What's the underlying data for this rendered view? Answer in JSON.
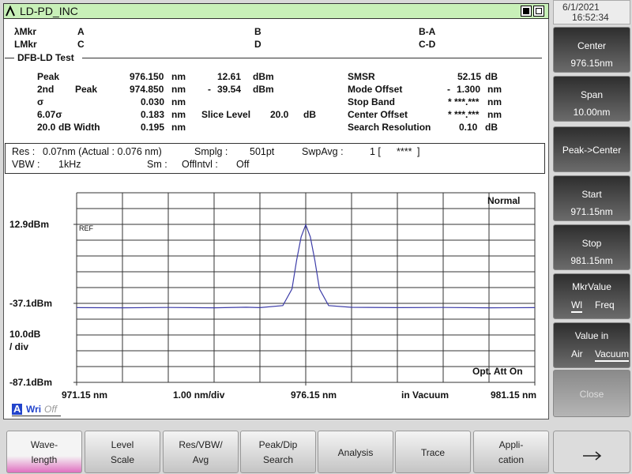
{
  "window": {
    "title": "LD-PD_INC"
  },
  "datetime": {
    "date": "6/1/2021",
    "time": "16:52:34"
  },
  "markers": {
    "rows": [
      [
        "λMkr",
        "A",
        "B",
        "B-A"
      ],
      [
        "LMkr",
        "C",
        "D",
        "C-D"
      ]
    ]
  },
  "test": {
    "title": "DFB-LD Test",
    "rows": [
      [
        "Peak",
        "976.150",
        "nm",
        "12.61",
        "dBm",
        "SMSR",
        "52.15",
        "dB"
      ],
      [
        "2nd",
        "Peak",
        "974.850",
        "nm",
        "-",
        "39.54",
        "dBm",
        "Mode Offset",
        "-",
        "1.300",
        "nm"
      ],
      [
        "σ",
        "0.030",
        "nm",
        "Stop Band",
        "* ***.***",
        "nm"
      ],
      [
        "6.07σ",
        "0.183",
        "nm",
        "Slice Level",
        "20.0",
        "dB",
        "Center Offset",
        "* ***.***",
        "nm"
      ],
      [
        "20.0",
        "dB Width",
        "0.195",
        "nm",
        "Search Resolution",
        "0.10",
        "dB"
      ]
    ]
  },
  "settings": {
    "rows": [
      [
        "Res :",
        "0.07nm (Actual : 0.076 nm)",
        "Smplg :",
        "501pt",
        "SwpAvg :",
        "1 [",
        "****",
        "]"
      ],
      [
        "VBW :",
        "1kHz",
        "Sm :",
        "Off",
        "Intvl :",
        "Off"
      ]
    ]
  },
  "graph_labels": {
    "mode": "Normal",
    "ref": "REF",
    "scale": "10.0dB",
    "scale_unit": "/ div",
    "att": "Opt. Att On",
    "span_div": "1.00 nm/div",
    "medium": "in Vacuum"
  },
  "trace_status": {
    "trace": "A",
    "mode": "Wri",
    "state": "Off"
  },
  "chart_data": {
    "type": "line",
    "xlim": [
      971.15,
      981.15
    ],
    "ylim": [
      -87.1,
      32.9
    ],
    "xticks": [
      {
        "value": 971.15,
        "label": "971.15 nm"
      },
      {
        "value": 976.15,
        "label": "976.15 nm"
      },
      {
        "value": 981.15,
        "label": "981.15 nm"
      }
    ],
    "yticks": [
      {
        "value": 12.9,
        "label": "12.9dBm"
      },
      {
        "value": -37.1,
        "label": "-37.1dBm"
      },
      {
        "value": -87.1,
        "label": "-87.1dBm"
      }
    ],
    "x": [
      971.15,
      972.15,
      973.15,
      974.15,
      974.85,
      975.15,
      975.65,
      975.85,
      975.95,
      976.05,
      976.15,
      976.25,
      976.35,
      976.45,
      976.65,
      977.15,
      978.15,
      979.15,
      980.15,
      981.15
    ],
    "series": [
      {
        "color": "#3c3ca8",
        "values": [
          -39.8,
          -39.9,
          -39.7,
          -39.9,
          -39.54,
          -39.8,
          -38.5,
          -28,
          -10,
          5,
          12.61,
          5,
          -10,
          -28,
          -38.5,
          -39.6,
          -39.8,
          -39.7,
          -39.9,
          -39.8
        ]
      }
    ]
  },
  "softkeys": [
    {
      "label": "Center",
      "value": "976.15nm"
    },
    {
      "label": "Span",
      "value": "10.00nm"
    },
    {
      "label": "Peak->Center"
    },
    {
      "label": "Start",
      "value": "971.15nm"
    },
    {
      "label": "Stop",
      "value": "981.15nm"
    },
    {
      "label": "MkrValue",
      "options": [
        "Wl",
        "Freq"
      ],
      "selected": 0
    },
    {
      "label": "Value in",
      "options": [
        "Air",
        "Vacuum"
      ],
      "selected": 1
    },
    {
      "label": "Close"
    }
  ],
  "function_keys": [
    [
      "Wave-",
      "length"
    ],
    [
      "Level",
      "Scale"
    ],
    [
      "Res/VBW/",
      "Avg"
    ],
    [
      "Peak/Dip",
      "Search"
    ],
    [
      "Analysis"
    ],
    [
      "Trace"
    ],
    [
      "Appli-",
      "cation"
    ]
  ],
  "active_function_key": 0
}
